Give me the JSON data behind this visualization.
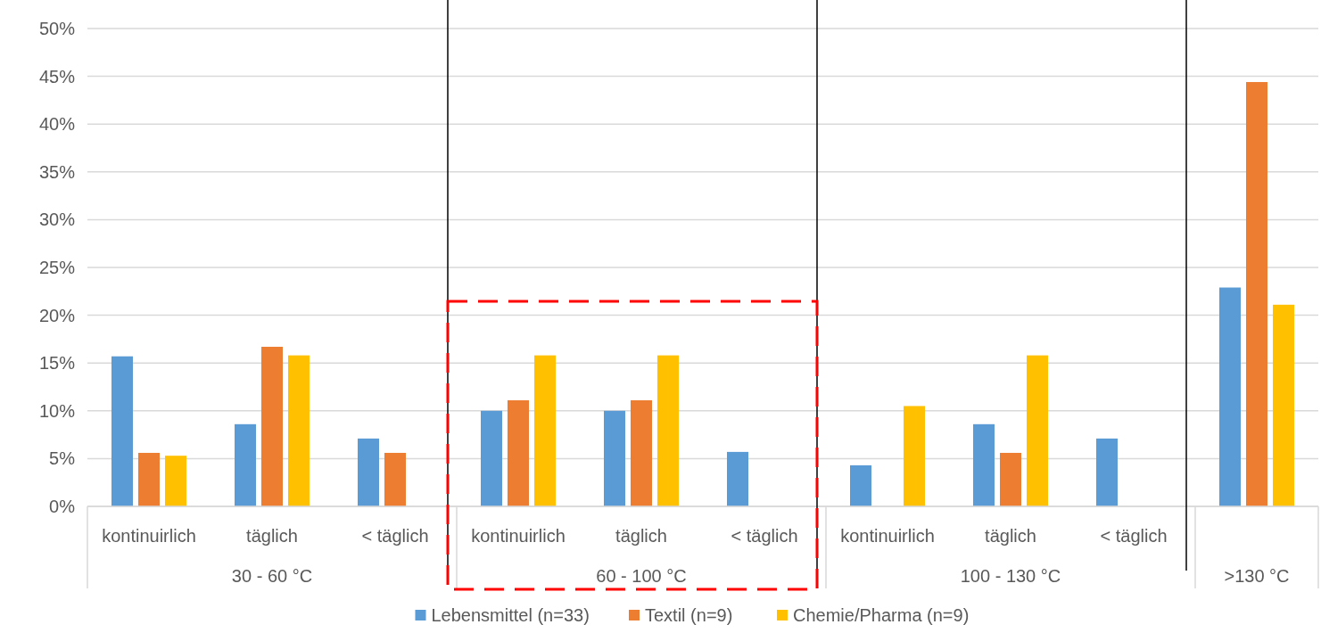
{
  "chart_data": {
    "type": "bar",
    "categories": [
      "kontinuirlich",
      "täglich",
      "< täglich",
      "kontinuirlich",
      "täglich",
      "< täglich",
      "kontinuirlich",
      "täglich",
      "< täglich",
      null
    ],
    "series": [
      {
        "name": "Lebensmittel (n=33)",
        "color": "#5b9bd5",
        "values": [
          15.7,
          8.6,
          7.1,
          10.0,
          10.0,
          5.7,
          4.3,
          8.6,
          7.1,
          22.9
        ]
      },
      {
        "name": "Textil (n=9)",
        "color": "#ed7d31",
        "values": [
          5.6,
          16.7,
          5.6,
          11.1,
          11.1,
          null,
          null,
          5.6,
          null,
          44.4
        ]
      },
      {
        "name": "Chemie/Pharma (n=9)",
        "color": "#ffc000",
        "values": [
          5.3,
          15.8,
          null,
          15.8,
          15.8,
          null,
          10.5,
          15.8,
          null,
          21.1
        ]
      }
    ],
    "annotations": [
      "30 - 60 °C",
      "60 - 100 °C",
      "100 - 130 °C",
      ">130 °C"
    ],
    "ylim": [
      0,
      50
    ],
    "yticks": [
      {
        "value": 0,
        "label": "0%"
      },
      {
        "value": 5,
        "label": "5%"
      },
      {
        "value": 10,
        "label": "10%"
      },
      {
        "value": 15,
        "label": "15%"
      },
      {
        "value": 20,
        "label": "20%"
      },
      {
        "value": 25,
        "label": "25%"
      },
      {
        "value": 30,
        "label": "30%"
      },
      {
        "value": 35,
        "label": "35%"
      },
      {
        "value": 40,
        "label": "40%"
      },
      {
        "value": 45,
        "label": "45%"
      },
      {
        "value": 50,
        "label": "50%"
      }
    ],
    "grid": "y",
    "legend": "bottom"
  }
}
